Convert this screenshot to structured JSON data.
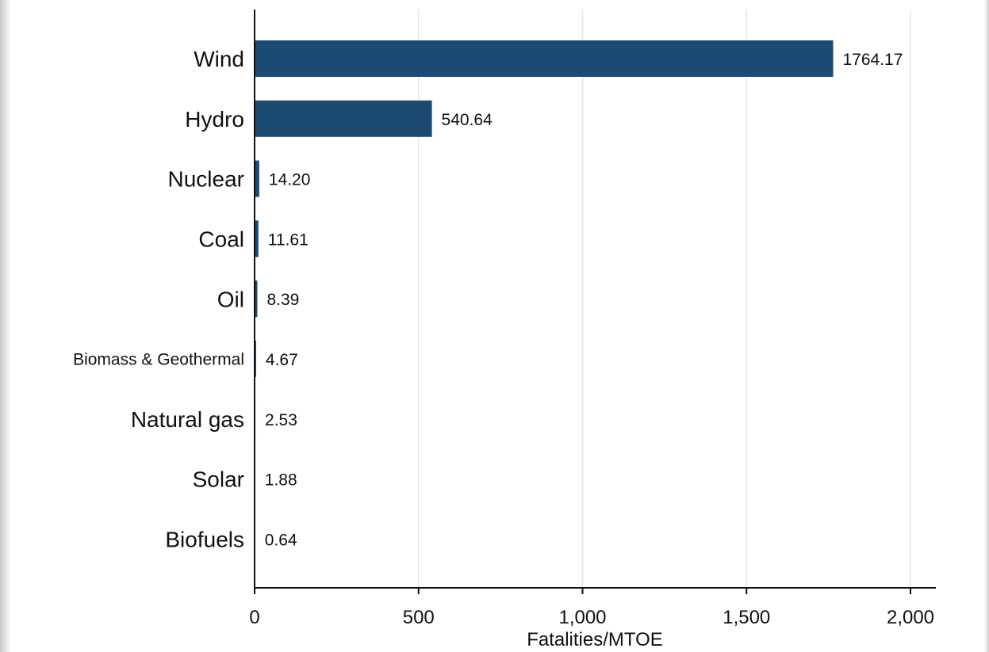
{
  "chart_data": {
    "type": "bar",
    "orientation": "horizontal",
    "categories": [
      "Wind",
      "Hydro",
      "Nuclear",
      "Coal",
      "Oil",
      "Biomass & Geothermal",
      "Natural gas",
      "Solar",
      "Biofuels"
    ],
    "values": [
      1764.17,
      540.64,
      14.2,
      11.61,
      8.39,
      4.67,
      2.53,
      1.88,
      0.64
    ],
    "value_labels": [
      "1764.17",
      "540.64",
      "14.20",
      "11.61",
      "8.39",
      "4.67",
      "2.53",
      "1.88",
      "0.64"
    ],
    "xlabel": "Fatalities/MTOE",
    "xlim": [
      0,
      2000
    ],
    "xticks": [
      0,
      500,
      1000,
      1500,
      2000
    ],
    "xtick_labels": [
      "0",
      "500",
      "1,000",
      "1,500",
      "2,000"
    ],
    "grid": "vertical",
    "bar_color": "#1b4a72",
    "grid_color": "#dde9e9"
  }
}
